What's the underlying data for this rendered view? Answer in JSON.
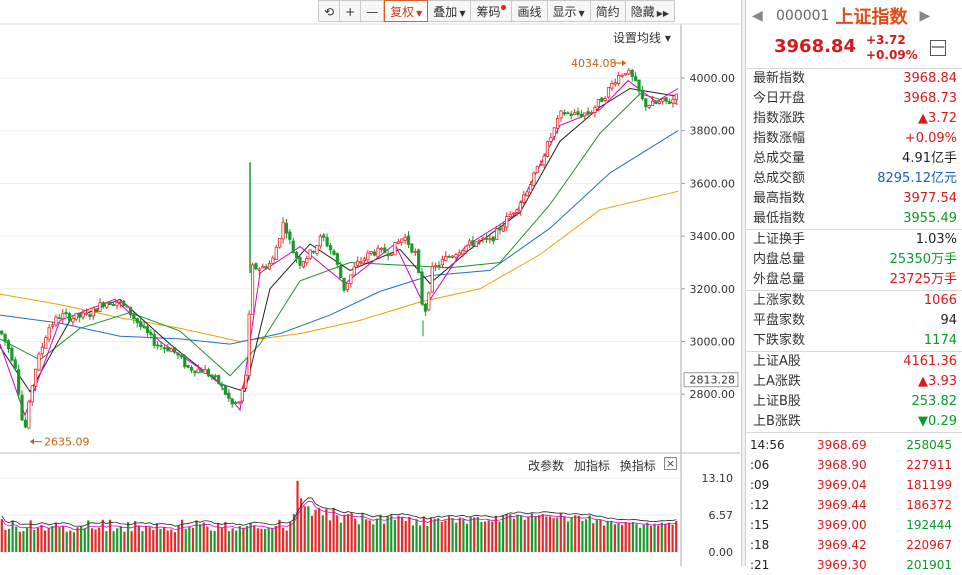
{
  "toolbar": {
    "items": [
      {
        "label": "⟲"
      },
      {
        "label": "+"
      },
      {
        "label": "—"
      },
      {
        "label": "复权"
      },
      {
        "label": "叠加"
      },
      {
        "label": "筹码"
      },
      {
        "label": "画线"
      },
      {
        "label": "显示"
      },
      {
        "label": "简约"
      },
      {
        "label": "隐藏"
      }
    ]
  },
  "ma_setting": "设置均线 ▾",
  "sub_toolbar": {
    "change_params": "改参数",
    "add_indicator": "加指标",
    "switch_indicator": "换指标",
    "close": "×"
  },
  "chart_data": [
    {
      "type": "candlestick",
      "title": "",
      "y_ticks": [
        "4000.00",
        "3800.00",
        "3600.00",
        "3400.00",
        "3200.00",
        "3000.00",
        "2800.00"
      ],
      "y_values": [
        4000,
        3800,
        3600,
        3400,
        3200,
        3000,
        2800
      ],
      "current_marker": "2813.28",
      "ylim": [
        2600,
        4080
      ],
      "annotations": [
        {
          "text": "4034.08",
          "value": 4034.08
        },
        {
          "text": "2635.09",
          "value": 2635.09
        }
      ],
      "anchors": [
        [
          0,
          3040
        ],
        [
          8,
          2980
        ],
        [
          16,
          2900
        ],
        [
          24,
          2640
        ],
        [
          34,
          2880
        ],
        [
          48,
          3050
        ],
        [
          60,
          3100
        ],
        [
          72,
          3090
        ],
        [
          88,
          3100
        ],
        [
          104,
          3150
        ],
        [
          118,
          3150
        ],
        [
          128,
          3120
        ],
        [
          140,
          3060
        ],
        [
          156,
          2990
        ],
        [
          172,
          2970
        ],
        [
          188,
          2900
        ],
        [
          204,
          2890
        ],
        [
          220,
          2840
        ],
        [
          232,
          2760
        ],
        [
          240,
          2770
        ],
        [
          246,
          2880
        ],
        [
          252,
          3280
        ],
        [
          262,
          3280
        ],
        [
          272,
          3300
        ],
        [
          284,
          3460
        ],
        [
          292,
          3350
        ],
        [
          300,
          3300
        ],
        [
          312,
          3340
        ],
        [
          322,
          3400
        ],
        [
          334,
          3330
        ],
        [
          344,
          3200
        ],
        [
          356,
          3290
        ],
        [
          372,
          3340
        ],
        [
          390,
          3340
        ],
        [
          404,
          3400
        ],
        [
          416,
          3330
        ],
        [
          424,
          3090
        ],
        [
          432,
          3270
        ],
        [
          444,
          3310
        ],
        [
          460,
          3350
        ],
        [
          476,
          3380
        ],
        [
          490,
          3380
        ],
        [
          504,
          3450
        ],
        [
          520,
          3530
        ],
        [
          536,
          3640
        ],
        [
          550,
          3770
        ],
        [
          562,
          3870
        ],
        [
          576,
          3860
        ],
        [
          590,
          3870
        ],
        [
          604,
          3930
        ],
        [
          616,
          4000
        ],
        [
          626,
          4030
        ],
        [
          634,
          3990
        ],
        [
          644,
          3900
        ],
        [
          654,
          3900
        ],
        [
          664,
          3910
        ],
        [
          672,
          3910
        ],
        [
          678,
          3968
        ]
      ],
      "ma_series": [
        {
          "color": "#f0a000",
          "points": [
            [
              0,
              3180
            ],
            [
              60,
              3140
            ],
            [
              120,
              3090
            ],
            [
              180,
              3050
            ],
            [
              240,
              3000
            ],
            [
              300,
              3030
            ],
            [
              360,
              3080
            ],
            [
              420,
              3150
            ],
            [
              480,
              3200
            ],
            [
              540,
              3330
            ],
            [
              600,
              3500
            ],
            [
              678,
              3570
            ]
          ]
        },
        {
          "color": "#1f6fcf",
          "points": [
            [
              0,
              3100
            ],
            [
              60,
              3070
            ],
            [
              120,
              3020
            ],
            [
              180,
              3010
            ],
            [
              230,
              2990
            ],
            [
              280,
              3030
            ],
            [
              330,
              3100
            ],
            [
              380,
              3190
            ],
            [
              430,
              3250
            ],
            [
              490,
              3270
            ],
            [
              550,
              3430
            ],
            [
              610,
              3640
            ],
            [
              678,
              3800
            ]
          ]
        },
        {
          "color": "#1f8f2f",
          "points": [
            [
              0,
              3010
            ],
            [
              40,
              2930
            ],
            [
              80,
              3050
            ],
            [
              130,
              3110
            ],
            [
              180,
              3040
            ],
            [
              230,
              2870
            ],
            [
              260,
              2990
            ],
            [
              300,
              3230
            ],
            [
              350,
              3300
            ],
            [
              400,
              3290
            ],
            [
              450,
              3280
            ],
            [
              500,
              3300
            ],
            [
              550,
              3520
            ],
            [
              600,
              3790
            ],
            [
              640,
              3940
            ],
            [
              678,
              3900
            ]
          ]
        },
        {
          "color": "#222222",
          "points": [
            [
              0,
              2980
            ],
            [
              30,
              2810
            ],
            [
              70,
              3080
            ],
            [
              120,
              3160
            ],
            [
              170,
              2990
            ],
            [
              220,
              2840
            ],
            [
              245,
              2810
            ],
            [
              270,
              3200
            ],
            [
              310,
              3370
            ],
            [
              350,
              3270
            ],
            [
              400,
              3350
            ],
            [
              430,
              3220
            ],
            [
              470,
              3350
            ],
            [
              520,
              3490
            ],
            [
              560,
              3760
            ],
            [
              600,
              3890
            ],
            [
              630,
              3960
            ],
            [
              678,
              3930
            ]
          ]
        },
        {
          "color": "#d400d4",
          "points": [
            [
              0,
              2990
            ],
            [
              25,
              2720
            ],
            [
              60,
              3080
            ],
            [
              115,
              3160
            ],
            [
              160,
              3000
            ],
            [
              215,
              2860
            ],
            [
              240,
              2740
            ],
            [
              260,
              3260
            ],
            [
              300,
              3360
            ],
            [
              345,
              3220
            ],
            [
              395,
              3370
            ],
            [
              425,
              3130
            ],
            [
              465,
              3360
            ],
            [
              515,
              3480
            ],
            [
              560,
              3820
            ],
            [
              600,
              3880
            ],
            [
              628,
              3990
            ],
            [
              656,
              3910
            ],
            [
              678,
              3960
            ]
          ]
        }
      ]
    },
    {
      "type": "bar",
      "title": "",
      "y_ticks": [
        "13.10",
        "6.57",
        "0.00"
      ],
      "ylim": [
        0,
        13.1
      ],
      "values": [
        5.8,
        3.9,
        4.1,
        5.6,
        4.5,
        3.6,
        3.7,
        4.3,
        5.6,
        3.9,
        4.3,
        4.8,
        3.8,
        4.2,
        4.6,
        5.2,
        4.4,
        4.6,
        3.6,
        3.8,
        3.5,
        4.4,
        4.5,
        4.2,
        5.6,
        4.2,
        4.0,
        4.3,
        5.7,
        3.7,
        5.7,
        3.7,
        4.2,
        4.6,
        3.6,
        5.3,
        3.7,
        5.5,
        4.7,
        3.7,
        4.6,
        4.4,
        3.9,
        5.1,
        4.1,
        4.4,
        3.8,
        4.0,
        3.5,
        4.7,
        5.7,
        4.1,
        4.5,
        4.3,
        5.6,
        4.9,
        5.2,
        4.5,
        3.8,
        3.7,
        5.1,
        4.3,
        5.3,
        3.7,
        4.2,
        3.8,
        4.6,
        4.3,
        4.6,
        5.2,
        4.7,
        4.2,
        4.1,
        4.1,
        4.3,
        4.2,
        4.6,
        5.7,
        4.3,
        3.8,
        5.3,
        6.7,
        12.6,
        9.5,
        8.1,
        8.1,
        6.4,
        7.5,
        7.8,
        6.5,
        7.6,
        5.6,
        7.8,
        6.5,
        5.2,
        6.6,
        6.7,
        7.0,
        5.9,
        4.9,
        6.9,
        5.8,
        5.6,
        4.9,
        5.9,
        6.6,
        5.0,
        6.3,
        6.5,
        5.7,
        6.4,
        6.1,
        5.5,
        6.2,
        4.7,
        5.8,
        4.7,
        6.3,
        4.6,
        6.0,
        5.9,
        6.0,
        5.3,
        5.6,
        6.3,
        6.0,
        5.2,
        6.1,
        5.8,
        5.0,
        6.2,
        6.1,
        6.2,
        5.3,
        5.4,
        5.6,
        5.4,
        6.4,
        5.4,
        6.5,
        6.7,
        6.7,
        5.9,
        6.6,
        6.4,
        5.7,
        6.3,
        6.8,
        6.3,
        6.5,
        6.7,
        6.3,
        6.3,
        6.0,
        6.1,
        6.8,
        6.2,
        5.4,
        6.1,
        6.5,
        6.4,
        5.5,
        5.8,
        6.5,
        5.1,
        5.7,
        5.7,
        4.7,
        5.5,
        5.5,
        4.9,
        5.2,
        4.8,
        5.3,
        5.2,
        5.3,
        5.0,
        4.3,
        4.8,
        5.2,
        4.6,
        5.0,
        4.7,
        5.2,
        5.0,
        5.2,
        4.8,
        5.5
      ]
    }
  ],
  "panel": {
    "nav_left": "◀",
    "code": "000001",
    "name": "上证指数",
    "nav_right": "▶",
    "price": "3968.84",
    "change": "+3.72",
    "change_pct": "+0.09%",
    "collapse": "—",
    "groups": [
      [
        {
          "label": "最新指数",
          "value": "3968.84",
          "color": "red"
        },
        {
          "label": "今日开盘",
          "value": "3968.73",
          "color": "red"
        },
        {
          "label": "指数涨跌",
          "value": "▲3.72",
          "color": "red"
        },
        {
          "label": "指数涨幅",
          "value": "+0.09%",
          "color": "red"
        },
        {
          "label": "总成交量",
          "value": "4.91亿手",
          "color": "dark"
        },
        {
          "label": "总成交额",
          "value": "8295.12亿元",
          "color": "blue"
        },
        {
          "label": "最高指数",
          "value": "3977.54",
          "color": "red"
        },
        {
          "label": "最低指数",
          "value": "3955.49",
          "color": "green"
        }
      ],
      [
        {
          "label": "上证换手",
          "value": "1.03%",
          "color": "dark"
        },
        {
          "label": "内盘总量",
          "value": "25350万手",
          "color": "green"
        },
        {
          "label": "外盘总量",
          "value": "23725万手",
          "color": "red"
        }
      ],
      [
        {
          "label": "上涨家数",
          "value": "1066",
          "color": "red"
        },
        {
          "label": "平盘家数",
          "value": "94",
          "color": "dark"
        },
        {
          "label": "下跌家数",
          "value": "1174",
          "color": "green"
        }
      ],
      [
        {
          "label": "上证A股",
          "value": "4161.36",
          "color": "red"
        },
        {
          "label": "上A涨跌",
          "value": "▲3.93",
          "color": "red"
        },
        {
          "label": "上证B股",
          "value": "253.82",
          "color": "green"
        },
        {
          "label": "上B涨跌",
          "value": "▼0.29",
          "color": "green"
        }
      ]
    ],
    "ticks": [
      {
        "time": "14:56",
        "price": "3968.69",
        "vol": "258045",
        "vol_color": "green"
      },
      {
        "time": ":06",
        "price": "3968.90",
        "vol": "227911",
        "vol_color": "red"
      },
      {
        "time": ":09",
        "price": "3969.04",
        "vol": "181199",
        "vol_color": "red"
      },
      {
        "time": ":12",
        "price": "3969.44",
        "vol": "186372",
        "vol_color": "red"
      },
      {
        "time": ":15",
        "price": "3969.00",
        "vol": "192444",
        "vol_color": "green"
      },
      {
        "time": ":18",
        "price": "3969.42",
        "vol": "220967",
        "vol_color": "red"
      },
      {
        "time": ":21",
        "price": "3969.30",
        "vol": "201901",
        "vol_color": "green"
      }
    ]
  }
}
